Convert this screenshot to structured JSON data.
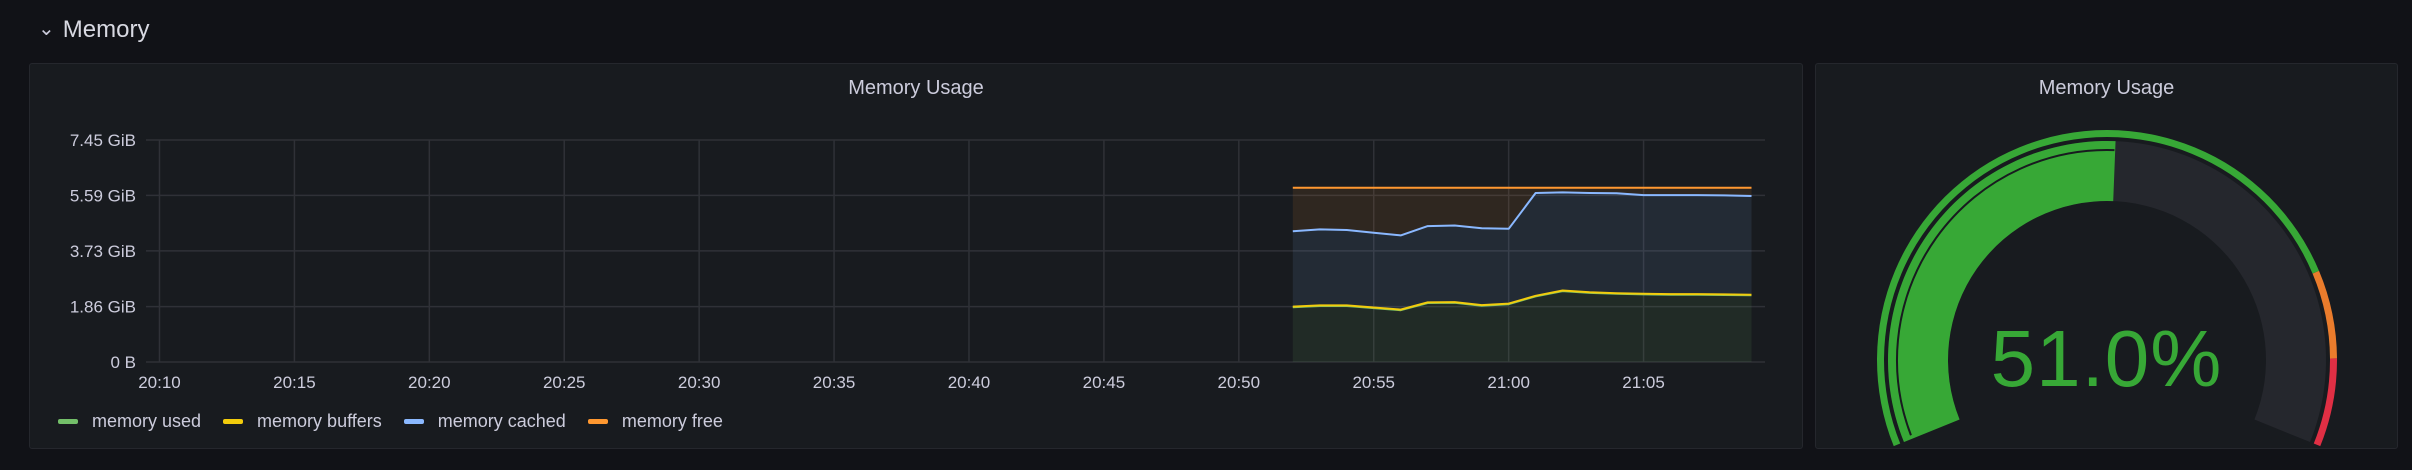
{
  "row": {
    "title": "Memory",
    "chevron_icon": "chevron-down-icon"
  },
  "graph_panel": {
    "title": "Memory Usage"
  },
  "gauge_panel": {
    "title": "Memory Usage",
    "value_text": "51.0%",
    "value": 51.0,
    "min": 0,
    "max": 100,
    "thresholds": [
      {
        "from": 0,
        "to": 80,
        "color": "#37a836"
      },
      {
        "from": 80,
        "to": 90,
        "color": "#ea7c2c"
      },
      {
        "from": 90,
        "to": 100,
        "color": "#e02f44"
      }
    ]
  },
  "chart_data": {
    "type": "line",
    "title": "Memory Usage",
    "y_ticks": [
      "0 B",
      "1.86 GiB",
      "3.73 GiB",
      "5.59 GiB",
      "7.45 GiB"
    ],
    "y_tick_values": [
      0,
      1.86,
      3.73,
      5.59,
      7.45
    ],
    "ylim": [
      0,
      7.45
    ],
    "x_ticks": [
      "20:10",
      "20:15",
      "20:20",
      "20:25",
      "20:30",
      "20:35",
      "20:40",
      "20:45",
      "20:50",
      "20:55",
      "21:00",
      "21:05"
    ],
    "x_tick_values": [
      "20:10",
      "20:15",
      "20:20",
      "20:25",
      "20:30",
      "20:35",
      "20:40",
      "20:45",
      "20:50",
      "20:55",
      "21:00",
      "21:05"
    ],
    "x_range": [
      "20:09:30",
      "21:09:30"
    ],
    "stacked": true,
    "grid": true,
    "legend_position": "bottom-left",
    "x": [
      "20:52",
      "20:53",
      "20:54",
      "20:55",
      "20:56",
      "20:57",
      "20:58",
      "20:59",
      "21:00",
      "21:01",
      "21:02",
      "21:03",
      "21:04",
      "21:05",
      "21:06",
      "21:07",
      "21:08",
      "21:09"
    ],
    "series": [
      {
        "name": "memory used",
        "color": "#73bf69",
        "values": [
          1.84,
          1.88,
          1.88,
          1.81,
          1.74,
          1.98,
          1.99,
          1.89,
          1.94,
          2.2,
          2.38,
          2.32,
          2.29,
          2.27,
          2.26,
          2.26,
          2.25,
          2.24
        ]
      },
      {
        "name": "memory buffers",
        "color": "#f2cc0c",
        "values": [
          0.02,
          0.02,
          0.02,
          0.02,
          0.02,
          0.02,
          0.02,
          0.02,
          0.02,
          0.02,
          0.02,
          0.02,
          0.02,
          0.02,
          0.02,
          0.02,
          0.02,
          0.02
        ]
      },
      {
        "name": "memory cached",
        "color": "#8ab8ff",
        "values": [
          2.53,
          2.55,
          2.53,
          2.51,
          2.49,
          2.56,
          2.57,
          2.58,
          2.51,
          3.45,
          3.29,
          3.33,
          3.35,
          3.31,
          3.32,
          3.32,
          3.32,
          3.31
        ]
      },
      {
        "name": "memory free",
        "color": "#ff9830",
        "values": [
          1.46,
          1.4,
          1.42,
          1.51,
          1.6,
          1.29,
          1.27,
          1.36,
          1.38,
          0.18,
          0.16,
          0.18,
          0.19,
          0.25,
          0.25,
          0.25,
          0.26,
          0.28
        ]
      }
    ]
  }
}
